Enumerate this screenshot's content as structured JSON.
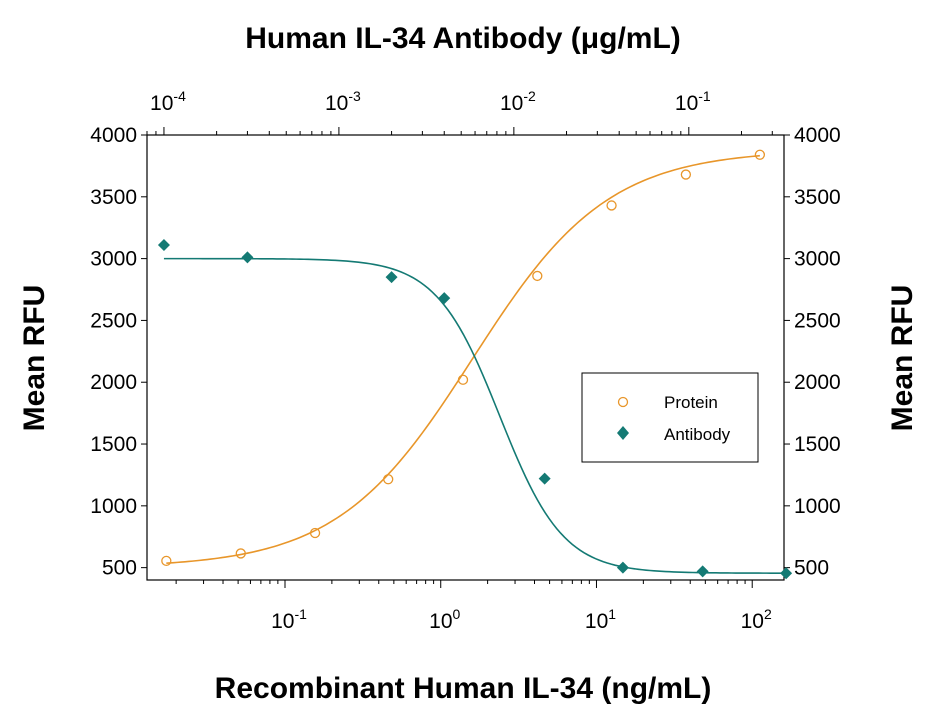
{
  "chart_data": {
    "type": "scatter",
    "title": "",
    "top_xlabel": "Human IL-34 Antibody (μg/mL)",
    "bottom_xlabel": "Recombinant Human IL-34 (ng/mL)",
    "left_ylabel": "Mean RFU",
    "right_ylabel": "Mean RFU",
    "x_scale": "log",
    "bottom_xlim": [
      0.013,
      160
    ],
    "top_xlim": [
      8e-05,
      0.35
    ],
    "ylim": [
      400,
      4000
    ],
    "yticks": [
      500,
      1000,
      1500,
      2000,
      2500,
      3000,
      3500,
      4000
    ],
    "bottom_xticks": [
      {
        "value": 0.1,
        "base": "10",
        "exp": "-1"
      },
      {
        "value": 1,
        "base": "10",
        "exp": "0"
      },
      {
        "value": 10,
        "base": "10",
        "exp": "1"
      },
      {
        "value": 100,
        "base": "10",
        "exp": "2"
      }
    ],
    "top_xticks": [
      {
        "value": 0.0001,
        "base": "10",
        "exp": "-4"
      },
      {
        "value": 0.001,
        "base": "10",
        "exp": "-3"
      },
      {
        "value": 0.01,
        "base": "10",
        "exp": "-2"
      },
      {
        "value": 0.1,
        "base": "10",
        "exp": "-1"
      }
    ],
    "grid": false,
    "legend_position": "right",
    "series": [
      {
        "name": "Protein",
        "axis": "bottom",
        "marker": "open-circle",
        "color": "#e8962a",
        "x": [
          0.0173,
          0.052,
          0.156,
          0.46,
          1.39,
          4.17,
          12.5,
          37.5,
          112
        ],
        "y": [
          555,
          615,
          780,
          1215,
          2020,
          2860,
          3430,
          3680,
          3840
        ],
        "fit": {
          "bottom": 500,
          "top": 3880,
          "ec50": 1.6,
          "hill": 1.0
        }
      },
      {
        "name": "Antibody",
        "axis": "top",
        "marker": "filled-diamond",
        "color": "#147a74",
        "x": [
          0.0001,
          0.0003,
          0.002,
          0.004,
          0.015,
          0.042,
          0.12,
          0.36
        ],
        "y": [
          3110,
          3010,
          2850,
          2680,
          1220,
          500,
          470,
          455
        ],
        "fit": {
          "bottom": 455,
          "top": 3000,
          "ec50": 0.0083,
          "hill": 2.4
        }
      }
    ]
  }
}
